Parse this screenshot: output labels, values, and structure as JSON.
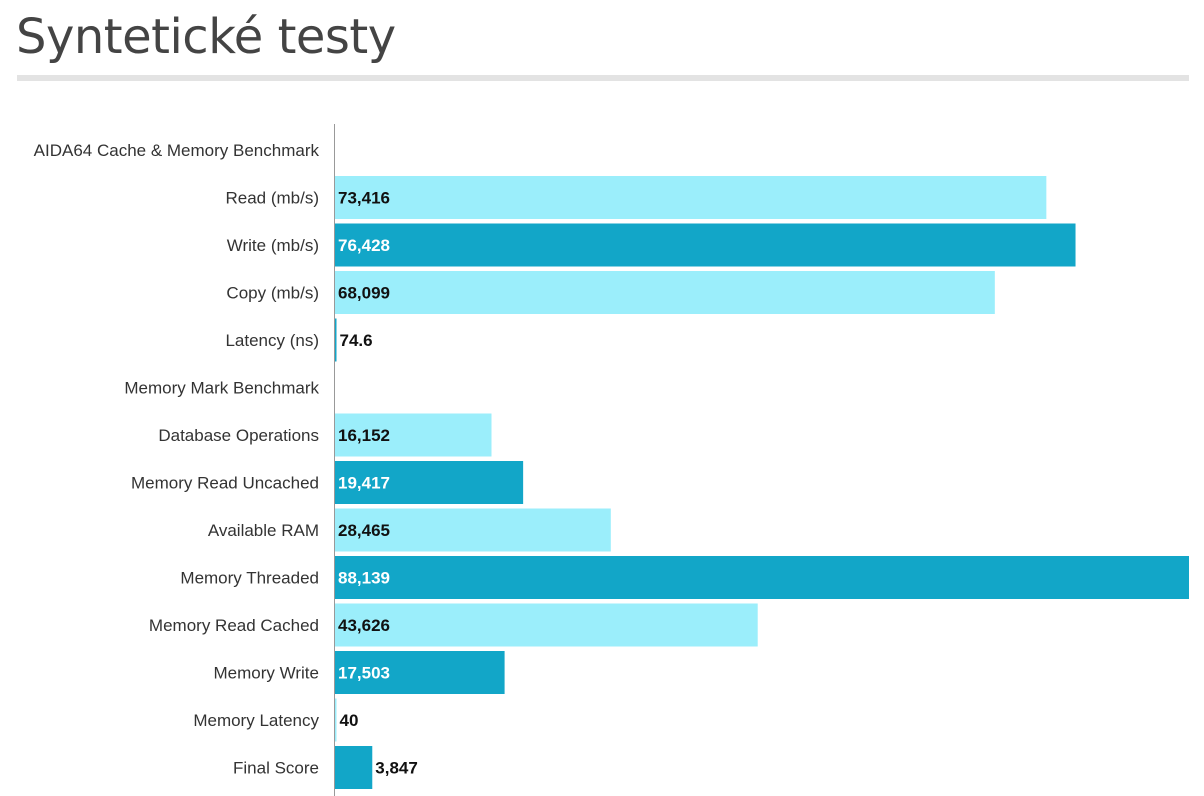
{
  "header": {
    "title": "Syntetické testy"
  },
  "colors": {
    "light_bar": "#9beefb",
    "dark_bar": "#12a6c8",
    "axis": "#999999"
  },
  "chart_data": {
    "type": "bar",
    "orientation": "horizontal",
    "title": "Syntetické testy",
    "xlabel": "",
    "ylabel": "",
    "grid": false,
    "legend": "none",
    "xlim": [
      0,
      88139
    ],
    "categories": [
      "AIDA64 Cache & Memory Benchmark",
      "Read (mb/s)",
      "Write (mb/s)",
      "Copy (mb/s)",
      "Latency (ns)",
      "Memory Mark Benchmark",
      "Database Operations",
      "Memory Read Uncached",
      "Available RAM",
      "Memory Threaded",
      "Memory Read Cached",
      "Memory Write",
      "Memory Latency",
      "Final Score"
    ],
    "values": [
      null,
      73416,
      76428,
      68099,
      74.6,
      null,
      16152,
      19417,
      28465,
      88139,
      43626,
      17503,
      40,
      3847
    ],
    "value_labels": [
      "",
      "73,416",
      "76,428",
      "68,099",
      "74.6",
      "",
      "16,152",
      "19,417",
      "28,465",
      "88,139",
      "43,626",
      "17,503",
      "40",
      "3,847"
    ],
    "bar_colors": [
      "",
      "light",
      "dark",
      "light",
      "dark",
      "",
      "light",
      "dark",
      "light",
      "dark",
      "light",
      "dark",
      "light",
      "dark"
    ]
  }
}
